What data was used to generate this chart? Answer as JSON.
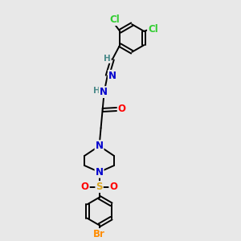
{
  "bg_color": "#e8e8e8",
  "atom_colors": {
    "Cl": "#32CD32",
    "N": "#0000CD",
    "O": "#FF0000",
    "S": "#DAA520",
    "Br": "#FF8C00",
    "C": "#000000",
    "H": "#4A8A8A"
  },
  "bond_color": "#000000",
  "bond_width": 1.4,
  "font_size_atom": 8.5
}
